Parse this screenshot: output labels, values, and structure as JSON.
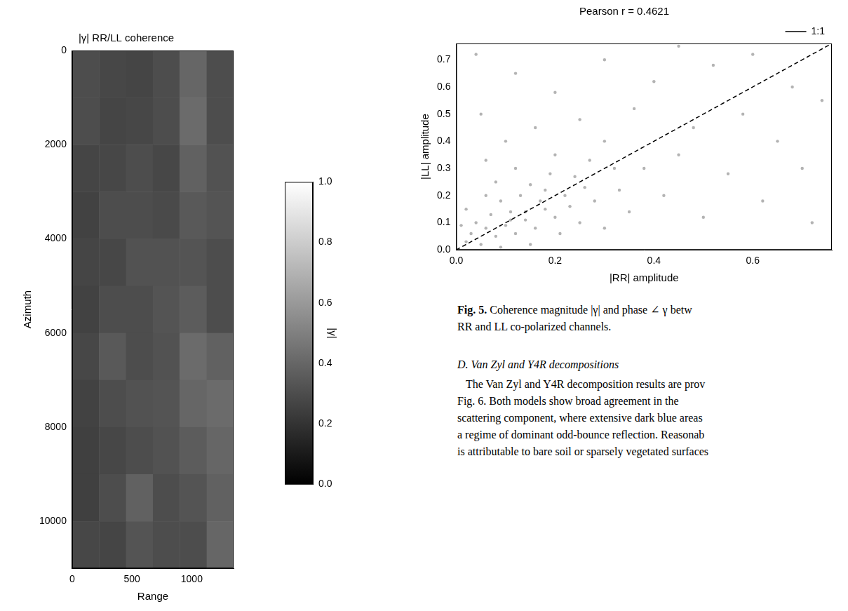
{
  "chart_data": [
    {
      "type": "heatmap",
      "title": "|γ| RR/LL coherence",
      "x_label": "Range",
      "y_label": "Azimuth",
      "xlim": [
        0,
        1350
      ],
      "xticks": [
        0,
        500,
        1000
      ],
      "ylim": [
        11000,
        0
      ],
      "yticks": [
        0,
        2000,
        4000,
        6000,
        8000,
        10000
      ],
      "grid": false,
      "x_edges": [
        0,
        225,
        450,
        675,
        900,
        1125,
        1350
      ],
      "y_edges": [
        0,
        1000,
        2000,
        3000,
        4000,
        5000,
        6000,
        7000,
        8000,
        9000,
        10000,
        11000
      ],
      "cells": [
        [
          0.3,
          0.28,
          0.27,
          0.3,
          0.4,
          0.3
        ],
        [
          0.3,
          0.27,
          0.28,
          0.3,
          0.42,
          0.3
        ],
        [
          0.27,
          0.28,
          0.3,
          0.28,
          0.38,
          0.32
        ],
        [
          0.26,
          0.3,
          0.3,
          0.29,
          0.35,
          0.33
        ],
        [
          0.27,
          0.28,
          0.32,
          0.32,
          0.33,
          0.3
        ],
        [
          0.26,
          0.3,
          0.3,
          0.33,
          0.36,
          0.3
        ],
        [
          0.28,
          0.35,
          0.3,
          0.32,
          0.42,
          0.38
        ],
        [
          0.26,
          0.3,
          0.32,
          0.33,
          0.4,
          0.42
        ],
        [
          0.25,
          0.28,
          0.3,
          0.32,
          0.36,
          0.4
        ],
        [
          0.25,
          0.3,
          0.38,
          0.3,
          0.33,
          0.38
        ],
        [
          0.28,
          0.27,
          0.33,
          0.3,
          0.3,
          0.4
        ]
      ],
      "colorbar": {
        "label": "|γ|",
        "range": [
          0,
          1
        ],
        "ticks": [
          {
            "value": 0,
            "label": "0.0"
          },
          0.2,
          0.4,
          0.6,
          0.8,
          {
            "value": 1,
            "label": "1.0"
          }
        ]
      }
    },
    {
      "type": "scatter",
      "title": "Pearson r = 0.4621",
      "x_label": "|RR| amplitude",
      "y_label": "|LL| amplitude",
      "xlim": [
        0,
        0.76
      ],
      "xticks": [
        {
          "value": 0,
          "label": "0.0"
        },
        0.2,
        0.4,
        0.6
      ],
      "ylim": [
        0,
        0.76
      ],
      "yticks": [
        {
          "value": 0,
          "label": "0.0"
        },
        0.1,
        0.2,
        0.3,
        0.4,
        0.5,
        0.6,
        0.7
      ],
      "grid": false,
      "legend": "top",
      "series": [
        {
          "type": "scatter",
          "color": "#808080",
          "marker": "circle",
          "x": [
            0.02,
            0.03,
            0.05,
            0.06,
            0.08,
            0.04,
            0.1,
            0.12,
            0.07,
            0.11,
            0.14,
            0.09,
            0.16,
            0.13,
            0.18,
            0.15,
            0.2,
            0.22,
            0.19,
            0.25,
            0.08,
            0.24,
            0.28,
            0.12,
            0.3,
            0.27,
            0.2,
            0.33,
            0.06,
            0.35,
            0.1,
            0.3,
            0.38,
            0.16,
            0.42,
            0.25,
            0.45,
            0.05,
            0.36,
            0.5,
            0.2,
            0.48,
            0.55,
            0.4,
            0.12,
            0.58,
            0.62,
            0.3,
            0.65,
            0.52,
            0.7,
            0.68,
            0.72,
            0.04,
            0.45,
            0.74,
            0.6,
            0.02,
            0.15,
            0.09,
            0.01,
            0.17,
            0.21,
            0.06,
            0.26,
            0.32,
            0.14,
            0.11,
            0.23,
            0.18
          ],
          "y": [
            0.03,
            0.06,
            0.02,
            0.08,
            0.05,
            0.1,
            0.09,
            0.06,
            0.13,
            0.14,
            0.11,
            0.18,
            0.08,
            0.2,
            0.15,
            0.24,
            0.12,
            0.2,
            0.28,
            0.1,
            0.25,
            0.27,
            0.18,
            0.3,
            0.08,
            0.33,
            0.35,
            0.22,
            0.33,
            0.14,
            0.4,
            0.4,
            0.3,
            0.45,
            0.2,
            0.48,
            0.35,
            0.5,
            0.52,
            0.12,
            0.58,
            0.45,
            0.28,
            0.62,
            0.65,
            0.5,
            0.18,
            0.7,
            0.4,
            0.68,
            0.3,
            0.6,
            0.1,
            0.72,
            0.75,
            0.55,
            0.72,
            0.15,
            0.02,
            0.01,
            0.09,
            0.18,
            0.06,
            0.2,
            0.23,
            0.3,
            0.14,
            0.11,
            0.16,
            0.22
          ]
        },
        {
          "name": "1:1",
          "type": "line",
          "color": "#000000",
          "line_style": "dashed",
          "x": [
            0,
            0.76
          ],
          "y": [
            0,
            0.76
          ]
        }
      ]
    }
  ],
  "caption": {
    "label": "Fig. 5.",
    "lines": [
      "Coherence magnitude |γ| and phase ∠ γ betw",
      "RR and LL co-polarized channels."
    ]
  },
  "section": {
    "heading": "D. Van Zyl and Y4R decompositions",
    "lines": [
      "The Van Zyl and Y4R decomposition results are prov",
      "Fig. 6. Both models show broad agreement in the",
      "scattering component, where extensive dark blue areas",
      "a regime of dominant odd-bounce reflection. Reasonab",
      "is attributable to bare soil or sparsely vegetated surfaces"
    ]
  }
}
